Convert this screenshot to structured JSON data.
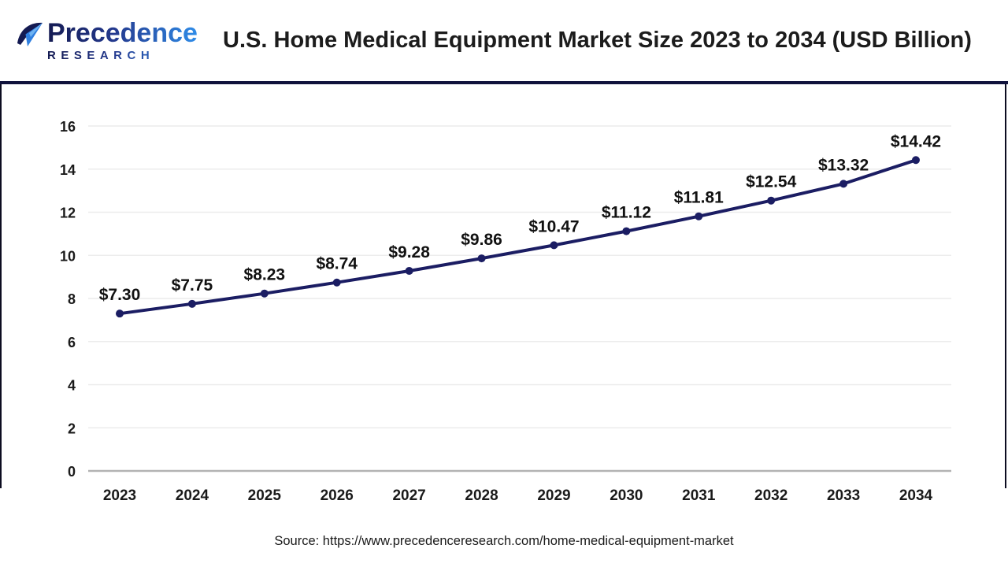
{
  "header": {
    "logo": {
      "line1": "Precedence",
      "line2": "RESEARCH"
    },
    "title": "U.S. Home Medical Equipment Market Size 2023 to 2034 (USD Billion)"
  },
  "chart_data": {
    "type": "line",
    "title": "U.S. Home Medical Equipment Market Size 2023 to 2034 (USD Billion)",
    "categories": [
      "2023",
      "2024",
      "2025",
      "2026",
      "2027",
      "2028",
      "2029",
      "2030",
      "2031",
      "2032",
      "2033",
      "2034"
    ],
    "series": [
      {
        "name": "U.S. Home Medical Equipment Market Size (USD Billion)",
        "values": [
          7.3,
          7.75,
          8.23,
          8.74,
          9.28,
          9.86,
          10.47,
          11.12,
          11.81,
          12.54,
          13.32,
          14.42
        ]
      }
    ],
    "point_labels": [
      "$7.30",
      "$7.75",
      "$8.23",
      "$8.74",
      "$9.28",
      "$9.86",
      "$10.47",
      "$11.12",
      "$11.81",
      "$12.54",
      "$13.32",
      "$14.42"
    ],
    "xlabel": "",
    "ylabel": "",
    "ylim": [
      0,
      16
    ],
    "yticks": [
      0,
      2,
      4,
      6,
      8,
      10,
      12,
      14,
      16
    ],
    "grid": true,
    "legend": "none",
    "line_color": "#1b1d63",
    "marker_color": "#1b1d63",
    "grid_color": "#ececec",
    "zero_line_color": "#b3b3b3",
    "tick_label_color": "#1a1a1a",
    "point_label_color": "#111111"
  },
  "footer": {
    "source": "Source: https://www.precedenceresearch.com/home-medical-equipment-market"
  }
}
